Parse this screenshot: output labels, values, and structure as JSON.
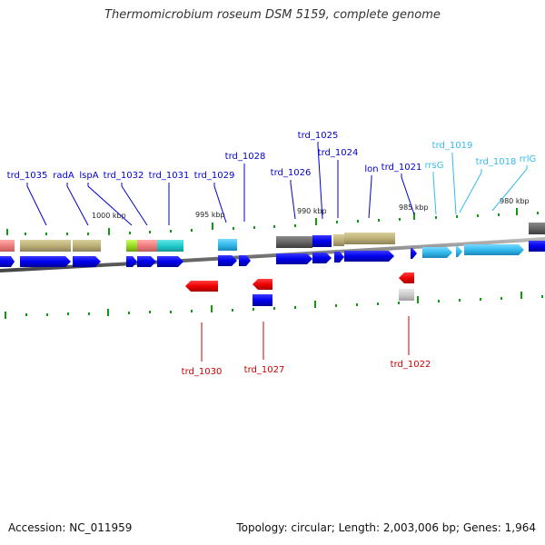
{
  "title": "Thermomicrobium roseum DSM 5159, complete genome",
  "footer": {
    "accession": "Accession: NC_011959",
    "info": "Topology: circular; Length: 2,003,006 bp; Genes: 1,964"
  },
  "colors": {
    "gene_label": "#0000cc",
    "rna_label": "#33bbee",
    "reverse_label": "#cc0000",
    "backbone": "#808080",
    "tick": "#119911"
  },
  "scale_labels": [
    "1000 kbp",
    "995 kbp",
    "990 kbp",
    "985 kbp",
    "980 kbp"
  ],
  "gene_labels_top": [
    "trd_1035",
    "radA",
    "lspA",
    "trd_1032",
    "trd_1031",
    "trd_1029",
    "trd_1028",
    "trd_1026",
    "trd_1025",
    "trd_1024",
    "lon",
    "trd_1021"
  ],
  "rna_labels_top": [
    "rrsG",
    "trd_1019",
    "trd_1018",
    "rrlG"
  ],
  "gene_labels_bottom": [
    "trd_1030",
    "trd_1027",
    "trd_1022"
  ]
}
